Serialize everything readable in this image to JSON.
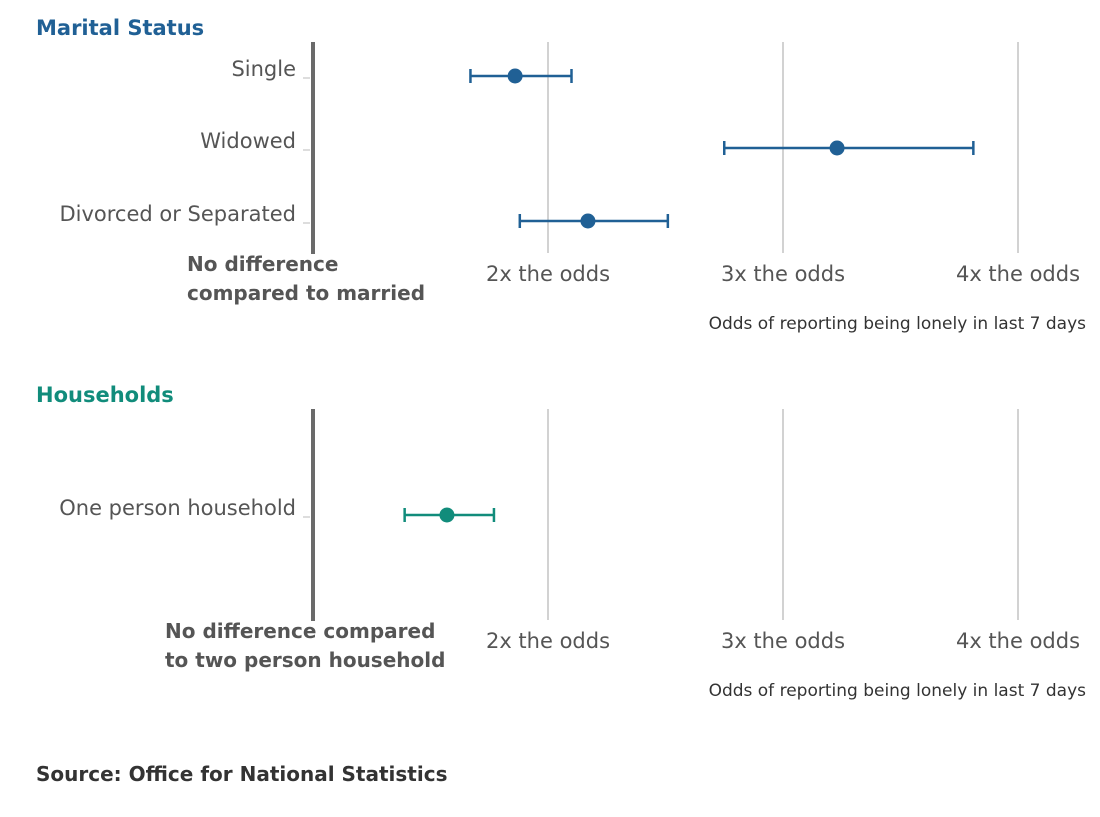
{
  "chart_data": [
    {
      "type": "forest",
      "title": "Marital Status",
      "color": "#206095",
      "reference_label": [
        "No difference",
        "compared to married"
      ],
      "reference_value": 1,
      "xlim": [
        1,
        4.3
      ],
      "ticks": [
        {
          "value": 2,
          "label": "2x the odds"
        },
        {
          "value": 3,
          "label": "3x the odds"
        },
        {
          "value": 4,
          "label": "4x the odds"
        }
      ],
      "xlabel": "Odds of reporting being lonely in last 7 days",
      "categories": [
        "Single",
        "Widowed",
        "Divorced or Separated"
      ],
      "estimates": [
        1.86,
        3.23,
        2.17
      ],
      "lower": [
        1.67,
        2.75,
        1.88
      ],
      "upper": [
        2.1,
        3.81,
        2.51
      ]
    },
    {
      "type": "forest",
      "title": "Households",
      "color": "#118c7b",
      "reference_label": [
        "No difference compared",
        "to two person household"
      ],
      "reference_value": 1,
      "xlim": [
        1,
        4.3
      ],
      "ticks": [
        {
          "value": 2,
          "label": "2x the odds"
        },
        {
          "value": 3,
          "label": "3x the odds"
        },
        {
          "value": 4,
          "label": "4x the odds"
        }
      ],
      "xlabel": "Odds of reporting being lonely in last 7 days",
      "categories": [
        "One person household"
      ],
      "estimates": [
        1.57
      ],
      "lower": [
        1.39
      ],
      "upper": [
        1.77
      ]
    }
  ],
  "source": "Source: Office for National Statistics"
}
